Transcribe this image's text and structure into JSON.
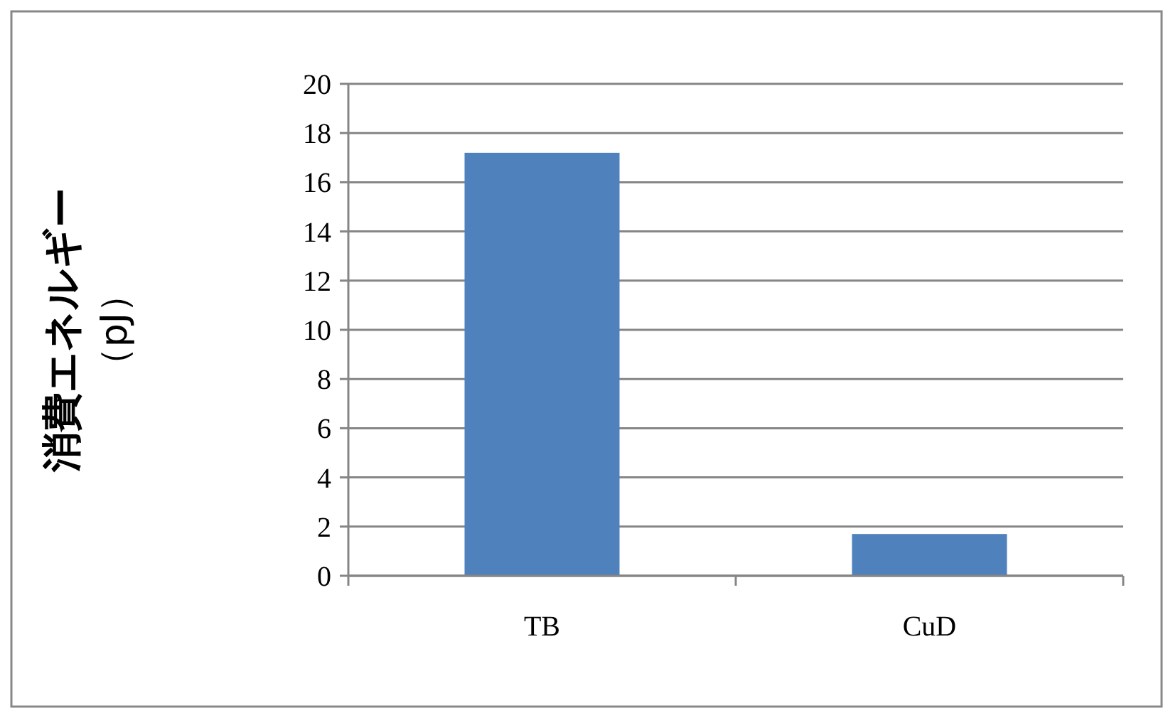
{
  "chart_data": {
    "type": "bar",
    "ylabel": "消費エネルギー（pJ）",
    "categories": [
      "TB",
      "CuD"
    ],
    "values": [
      17.2,
      1.7
    ],
    "color": "#4f81bd",
    "ylim": [
      0,
      20
    ],
    "yticks": [
      0,
      2,
      4,
      6,
      8,
      10,
      12,
      14,
      16,
      18,
      20
    ],
    "grid": "y"
  }
}
